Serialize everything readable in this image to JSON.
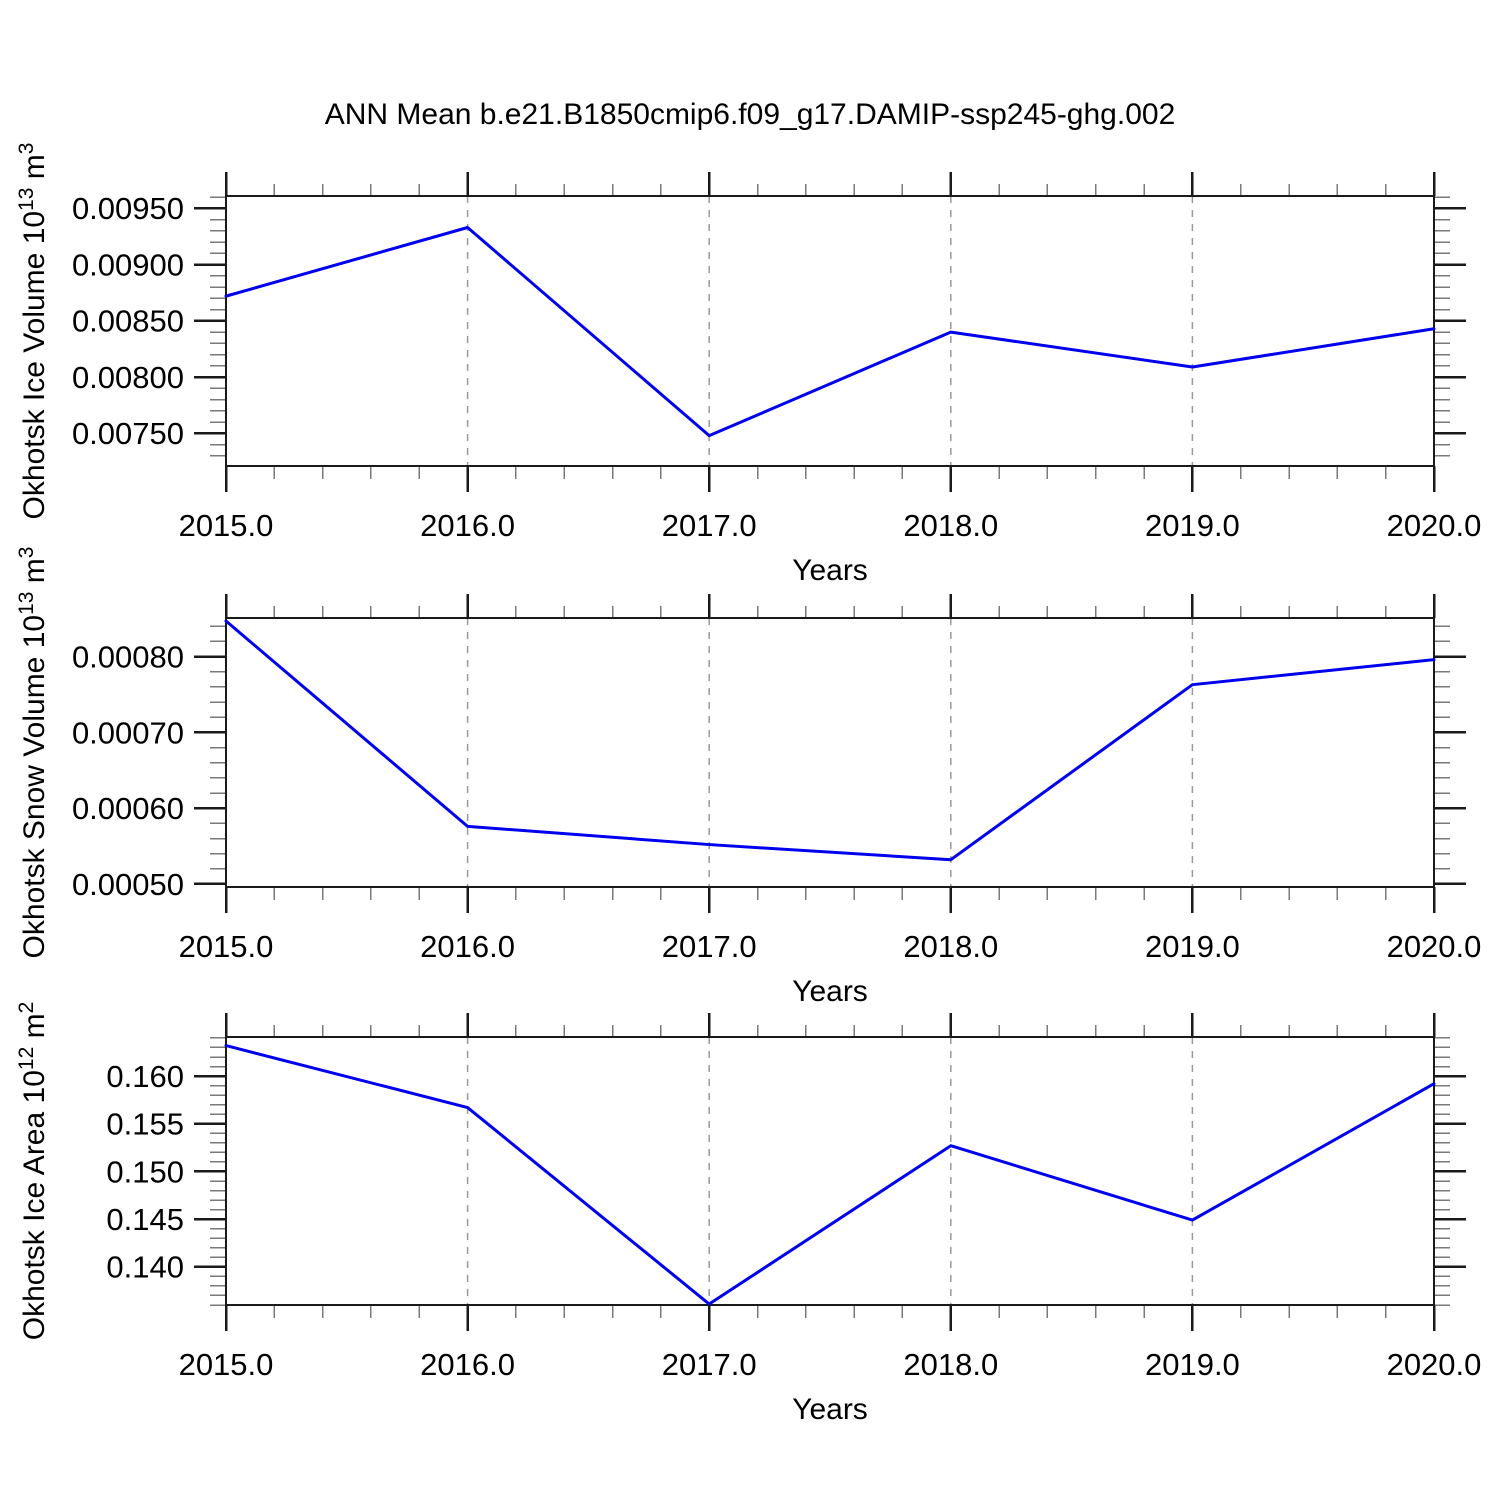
{
  "page": {
    "title": "ANN Mean b.e21.B1850cmip6.f09_g17.DAMIP-ssp245-ghg.002"
  },
  "style": {
    "line_color": "#0000ee",
    "frame_color": "#1a1a1a",
    "major_tick_color": "#1a1a1a",
    "minor_tick_color": "#7a7a7a",
    "grid_color": "#999999",
    "text_color": "#000000"
  },
  "chart_data": [
    {
      "type": "line",
      "title": "",
      "xlabel": "Years",
      "ylabel": "Okhotsk Ice Volume 10^13 m^3",
      "ylabel_segments": [
        {
          "text": "Okhotsk Ice Volume 10"
        },
        {
          "text": "13",
          "superscript": true
        },
        {
          "text": " m"
        },
        {
          "text": "3",
          "superscript": true
        }
      ],
      "x": [
        2015,
        2016,
        2017,
        2018,
        2019,
        2020
      ],
      "values": [
        0.00872,
        0.00933,
        0.00748,
        0.0084,
        0.00809,
        0.00843
      ],
      "xlim": [
        2015,
        2020
      ],
      "ylim": [
        0.00721,
        0.00961
      ],
      "xticks": {
        "values": [
          2015,
          2016,
          2017,
          2018,
          2019,
          2020
        ],
        "labels": [
          "2015.0",
          "2016.0",
          "2017.0",
          "2018.0",
          "2019.0",
          "2020.0"
        ]
      },
      "yticks": {
        "values": [
          0.0075,
          0.008,
          0.0085,
          0.009,
          0.0095
        ],
        "labels": [
          "0.00750",
          "0.00800",
          "0.00850",
          "0.00900",
          "0.00950"
        ]
      },
      "minor_x_step": 0.2,
      "minor_y_step": 0.0001,
      "gridlines_x": [
        2016,
        2017,
        2018,
        2019
      ],
      "grid_style": "dashed",
      "legend": "none"
    },
    {
      "type": "line",
      "title": "",
      "xlabel": "Years",
      "ylabel": "Okhotsk Snow Volume 10^13 m^3",
      "ylabel_segments": [
        {
          "text": "Okhotsk Snow Volume 10"
        },
        {
          "text": "13",
          "superscript": true
        },
        {
          "text": " m"
        },
        {
          "text": "3",
          "superscript": true
        }
      ],
      "x": [
        2015,
        2016,
        2017,
        2018,
        2019,
        2020
      ],
      "values": [
        0.000847,
        0.000576,
        0.000552,
        0.000532,
        0.000763,
        0.000796
      ],
      "xlim": [
        2015,
        2020
      ],
      "ylim": [
        0.000496,
        0.000851
      ],
      "xticks": {
        "values": [
          2015,
          2016,
          2017,
          2018,
          2019,
          2020
        ],
        "labels": [
          "2015.0",
          "2016.0",
          "2017.0",
          "2018.0",
          "2019.0",
          "2020.0"
        ]
      },
      "yticks": {
        "values": [
          0.0005,
          0.0006,
          0.0007,
          0.0008
        ],
        "labels": [
          "0.00050",
          "0.00060",
          "0.00070",
          "0.00080"
        ]
      },
      "minor_x_step": 0.2,
      "minor_y_step": 2e-05,
      "gridlines_x": [
        2016,
        2017,
        2018,
        2019
      ],
      "grid_style": "dashed",
      "legend": "none"
    },
    {
      "type": "line",
      "title": "",
      "xlabel": "Years",
      "ylabel": "Okhotsk Ice Area 10^12 m^2",
      "ylabel_segments": [
        {
          "text": "Okhotsk Ice Area 10"
        },
        {
          "text": "12",
          "superscript": true
        },
        {
          "text": " m"
        },
        {
          "text": "2",
          "superscript": true
        }
      ],
      "x": [
        2015,
        2016,
        2017,
        2018,
        2019,
        2020
      ],
      "values": [
        0.1632,
        0.1567,
        0.1361,
        0.1527,
        0.1449,
        0.1592
      ],
      "xlim": [
        2015,
        2020
      ],
      "ylim": [
        0.136,
        0.1641
      ],
      "xticks": {
        "values": [
          2015,
          2016,
          2017,
          2018,
          2019,
          2020
        ],
        "labels": [
          "2015.0",
          "2016.0",
          "2017.0",
          "2018.0",
          "2019.0",
          "2020.0"
        ]
      },
      "yticks": {
        "values": [
          0.14,
          0.145,
          0.15,
          0.155,
          0.16
        ],
        "labels": [
          "0.140",
          "0.145",
          "0.150",
          "0.155",
          "0.160"
        ]
      },
      "minor_x_step": 0.2,
      "minor_y_step": 0.001,
      "gridlines_x": [
        2016,
        2017,
        2018,
        2019
      ],
      "grid_style": "dashed",
      "legend": "none"
    }
  ]
}
